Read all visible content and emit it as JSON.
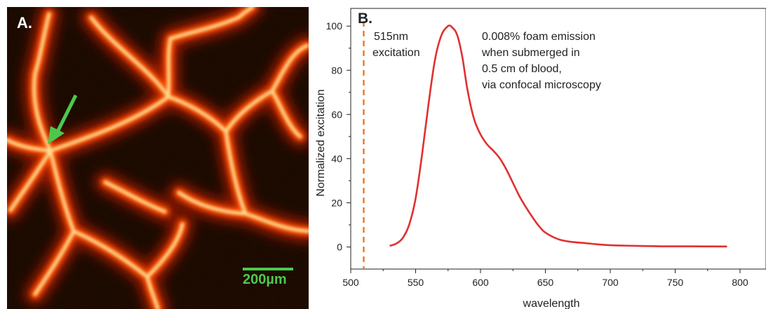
{
  "panel_a": {
    "label": "A.",
    "scale_bar_label": "200µm",
    "colors": {
      "background": "#080000",
      "network_glow": "#ff4a00",
      "network_core": "#ffe6a0",
      "arrow": "#4cc94c",
      "scale_bar": "#4cc94c"
    },
    "arrow_icon": "arrow-down-left-icon"
  },
  "chart_data": {
    "type": "line",
    "panel_label": "B.",
    "title": "",
    "xlabel": "wavelength",
    "ylabel": "Normalized excitation",
    "xlim": [
      500,
      820
    ],
    "ylim": [
      -10,
      108
    ],
    "xticks": [
      500,
      550,
      600,
      650,
      700,
      750,
      800
    ],
    "yticks": [
      0,
      20,
      40,
      60,
      80,
      100
    ],
    "grid": false,
    "series": [
      {
        "color": "#e03030",
        "x": [
          530,
          535,
          540,
          545,
          550,
          555,
          560,
          565,
          570,
          575,
          578,
          582,
          586,
          590,
          595,
          600,
          605,
          610,
          615,
          620,
          625,
          630,
          635,
          640,
          645,
          650,
          660,
          670,
          680,
          690,
          700,
          720,
          740,
          760,
          790
        ],
        "y": [
          0.5,
          1.5,
          4,
          10,
          22,
          42,
          65,
          85,
          96,
          100,
          99.5,
          96,
          86,
          71,
          58,
          51,
          46.5,
          43.5,
          40,
          35,
          29,
          23,
          18,
          13.5,
          9.5,
          6.5,
          3.5,
          2.3,
          1.8,
          1.2,
          0.8,
          0.5,
          0.3,
          0.3,
          0.2
        ]
      }
    ],
    "excitation_line": {
      "x": 510,
      "color": "#e8772a",
      "style": "dashed"
    },
    "annotations": {
      "excitation": [
        "515nm",
        "excitation"
      ],
      "emission": [
        "0.008% foam emission",
        "when submerged in",
        "0.5 cm of blood,",
        "via confocal microscopy"
      ]
    }
  }
}
